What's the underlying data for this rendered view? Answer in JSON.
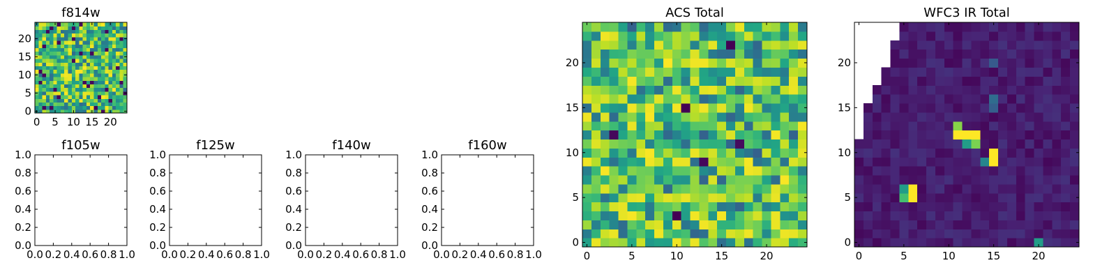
{
  "figure": {
    "panel_titles": [
      "f814w",
      "f105w",
      "f125w",
      "f140w",
      "f160w",
      "ACS Total",
      "WFC3 IR Total"
    ]
  },
  "chart_data": [
    {
      "id": "f814w",
      "type": "heatmap",
      "title": "f814w",
      "colormap": "viridis",
      "grid_shape": [
        25,
        25
      ],
      "x_range": [
        -0.5,
        24.5
      ],
      "y_range": [
        -0.5,
        24.5
      ],
      "x_ticks": [
        0,
        5,
        10,
        15,
        20
      ],
      "x_tick_labels": [
        "0",
        "5",
        "10",
        "15",
        "20"
      ],
      "y_ticks": [
        0,
        5,
        10,
        15,
        20
      ],
      "y_tick_labels": [
        "0",
        "5",
        "10",
        "15",
        "20"
      ],
      "value_pattern": "noisy",
      "seed": 11,
      "nan_mask": "none",
      "hotspots": []
    },
    {
      "id": "f105w",
      "type": "empty",
      "title": "f105w",
      "x_range": [
        0.0,
        1.0
      ],
      "y_range": [
        0.0,
        1.0
      ],
      "x_ticks": [
        0.0,
        0.2,
        0.4,
        0.6,
        0.8,
        1.0
      ],
      "x_tick_labels": [
        "0.0",
        "0.2",
        "0.4",
        "0.6",
        "0.8",
        "1.0"
      ],
      "y_ticks": [
        0.0,
        0.2,
        0.4,
        0.6,
        0.8,
        1.0
      ],
      "y_tick_labels": [
        "0.0",
        "0.2",
        "0.4",
        "0.6",
        "0.8",
        "1.0"
      ]
    },
    {
      "id": "f125w",
      "type": "empty",
      "title": "f125w",
      "x_range": [
        0.0,
        1.0
      ],
      "y_range": [
        0.0,
        1.0
      ],
      "x_ticks": [
        0.0,
        0.2,
        0.4,
        0.6,
        0.8,
        1.0
      ],
      "x_tick_labels": [
        "0.0",
        "0.2",
        "0.4",
        "0.6",
        "0.8",
        "1.0"
      ],
      "y_ticks": [
        0.0,
        0.2,
        0.4,
        0.6,
        0.8,
        1.0
      ],
      "y_tick_labels": [
        "0.0",
        "0.2",
        "0.4",
        "0.6",
        "0.8",
        "1.0"
      ]
    },
    {
      "id": "f140w",
      "type": "empty",
      "title": "f140w",
      "x_range": [
        0.0,
        1.0
      ],
      "y_range": [
        0.0,
        1.0
      ],
      "x_ticks": [
        0.0,
        0.2,
        0.4,
        0.6,
        0.8,
        1.0
      ],
      "x_tick_labels": [
        "0.0",
        "0.2",
        "0.4",
        "0.6",
        "0.8",
        "1.0"
      ],
      "y_ticks": [
        0.0,
        0.2,
        0.4,
        0.6,
        0.8,
        1.0
      ],
      "y_tick_labels": [
        "0.0",
        "0.2",
        "0.4",
        "0.6",
        "0.8",
        "1.0"
      ]
    },
    {
      "id": "f160w",
      "type": "empty",
      "title": "f160w",
      "x_range": [
        0.0,
        1.0
      ],
      "y_range": [
        0.0,
        1.0
      ],
      "x_ticks": [
        0.0,
        0.2,
        0.4,
        0.6,
        0.8,
        1.0
      ],
      "x_tick_labels": [
        "0.0",
        "0.2",
        "0.4",
        "0.6",
        "0.8",
        "1.0"
      ],
      "y_ticks": [
        0.0,
        0.2,
        0.4,
        0.6,
        0.8,
        1.0
      ],
      "y_tick_labels": [
        "0.0",
        "0.2",
        "0.4",
        "0.6",
        "0.8",
        "1.0"
      ]
    },
    {
      "id": "acs_total",
      "type": "heatmap",
      "title": "ACS Total",
      "colormap": "viridis",
      "grid_shape": [
        25,
        25
      ],
      "x_range": [
        -0.5,
        24.5
      ],
      "y_range": [
        -0.5,
        24.5
      ],
      "x_ticks": [
        0,
        5,
        10,
        15,
        20
      ],
      "x_tick_labels": [
        "0",
        "5",
        "10",
        "15",
        "20"
      ],
      "y_ticks": [
        0,
        5,
        10,
        15,
        20
      ],
      "y_tick_labels": [
        "0",
        "5",
        "10",
        "15",
        "20"
      ],
      "value_pattern": "noisy_bright",
      "seed": 29,
      "nan_mask": "none",
      "hotspots": [
        {
          "col": 11,
          "row": 15,
          "value": 0.0
        },
        {
          "col": 16,
          "row": 22,
          "value": 0.0
        },
        {
          "col": 3,
          "row": 12,
          "value": 0.02
        },
        {
          "col": 13,
          "row": 9,
          "value": 0.02
        },
        {
          "col": 17,
          "row": 11,
          "value": 0.03
        },
        {
          "col": 10,
          "row": 3,
          "value": 0.0
        },
        {
          "col": 12,
          "row": 20,
          "value": 0.98
        },
        {
          "col": 13,
          "row": 20,
          "value": 0.98
        },
        {
          "col": 21,
          "row": 3,
          "value": 0.97
        },
        {
          "col": 21,
          "row": 2,
          "value": 0.97
        },
        {
          "col": 5,
          "row": 5,
          "value": 0.96
        },
        {
          "col": 1,
          "row": 0,
          "value": 0.97
        }
      ]
    },
    {
      "id": "wfc3_ir_total",
      "type": "heatmap",
      "title": "WFC3 IR Total",
      "colormap": "viridis",
      "grid_shape": [
        25,
        25
      ],
      "x_range": [
        -0.5,
        24.5
      ],
      "y_range": [
        -0.5,
        24.5
      ],
      "x_ticks": [
        0,
        5,
        10,
        15,
        20
      ],
      "x_tick_labels": [
        "0",
        "5",
        "10",
        "15",
        "20"
      ],
      "y_ticks": [
        0,
        5,
        10,
        15,
        20
      ],
      "y_tick_labels": [
        "0",
        "5",
        "10",
        "15",
        "20"
      ],
      "value_pattern": "dark",
      "seed": 47,
      "nan_mask": "top-left wedge",
      "nan_cells_per_row_from_top": [
        5,
        5,
        4,
        4,
        4,
        3,
        3,
        2,
        2,
        1,
        1,
        1,
        1,
        0,
        0,
        0,
        0,
        0,
        0,
        0,
        0,
        0,
        0,
        0,
        0
      ],
      "hotspots": [
        {
          "col": 11,
          "row": 13,
          "value": 0.82
        },
        {
          "col": 11,
          "row": 12,
          "value": 1.0
        },
        {
          "col": 12,
          "row": 12,
          "value": 1.0
        },
        {
          "col": 13,
          "row": 12,
          "value": 1.0
        },
        {
          "col": 12,
          "row": 11,
          "value": 0.55
        },
        {
          "col": 13,
          "row": 11,
          "value": 0.8
        },
        {
          "col": 15,
          "row": 10,
          "value": 1.0
        },
        {
          "col": 15,
          "row": 9,
          "value": 1.0
        },
        {
          "col": 14,
          "row": 9,
          "value": 0.45
        },
        {
          "col": 6,
          "row": 6,
          "value": 1.0
        },
        {
          "col": 6,
          "row": 5,
          "value": 1.0
        },
        {
          "col": 5,
          "row": 6,
          "value": 0.55
        },
        {
          "col": 5,
          "row": 5,
          "value": 0.7
        },
        {
          "col": 20,
          "row": 0,
          "value": 0.55
        },
        {
          "col": 15,
          "row": 16,
          "value": 0.35
        },
        {
          "col": 15,
          "row": 15,
          "value": 0.3
        },
        {
          "col": 15,
          "row": 20,
          "value": 0.28
        }
      ]
    }
  ]
}
